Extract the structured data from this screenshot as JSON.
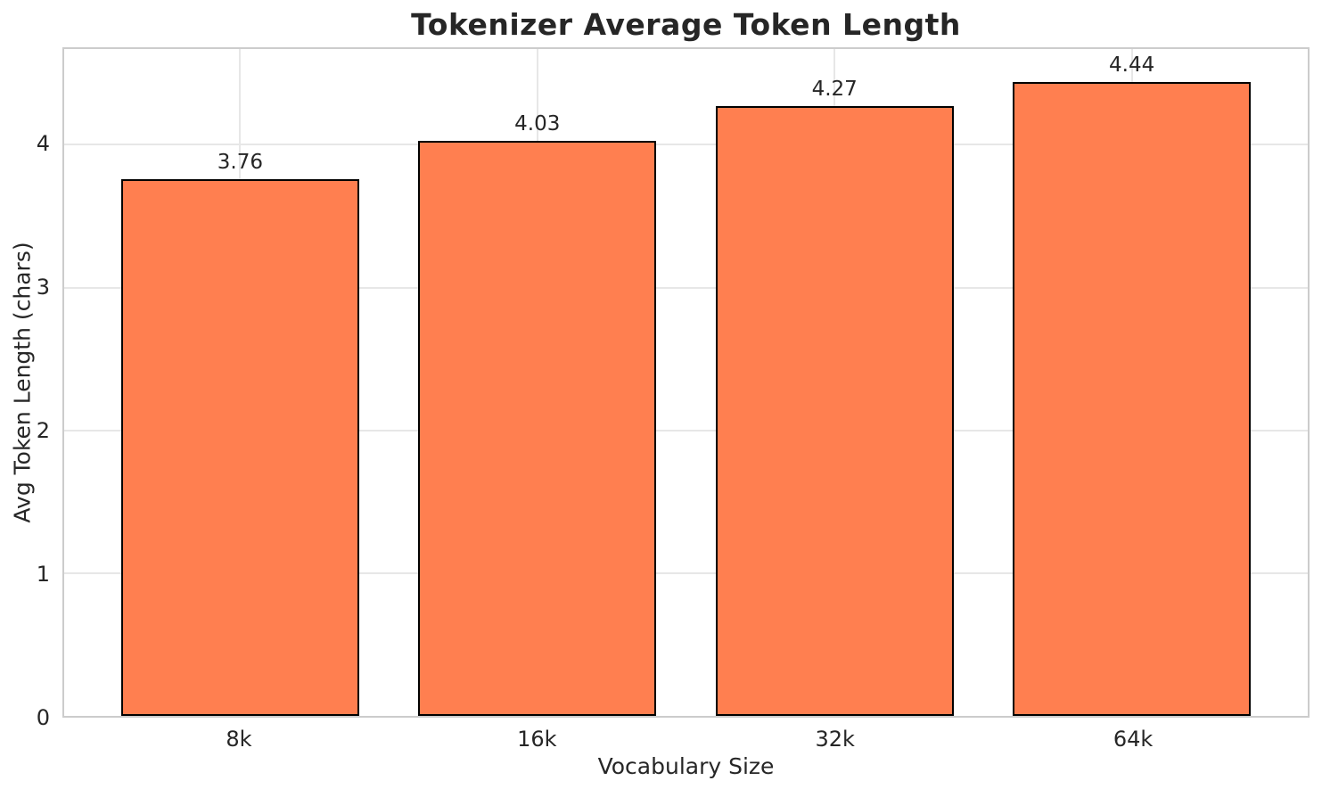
{
  "chart_data": {
    "type": "bar",
    "title": "Tokenizer Average Token Length",
    "xlabel": "Vocabulary Size",
    "ylabel": "Avg Token Length (chars)",
    "categories": [
      "8k",
      "16k",
      "32k",
      "64k"
    ],
    "values": [
      3.76,
      4.03,
      4.27,
      4.44
    ],
    "value_labels": [
      "3.76",
      "4.03",
      "4.27",
      "4.44"
    ],
    "yticks": [
      0,
      1,
      2,
      3,
      4
    ],
    "ylim": [
      0,
      4.67
    ],
    "grid": true,
    "legend": "none",
    "bar_width_fraction": 0.8,
    "colors": {
      "bar_fill": "#FF7F50",
      "bar_edge": "#000000",
      "grid": "#e7e7e7",
      "spine": "#cccccc",
      "text": "#262626"
    }
  }
}
